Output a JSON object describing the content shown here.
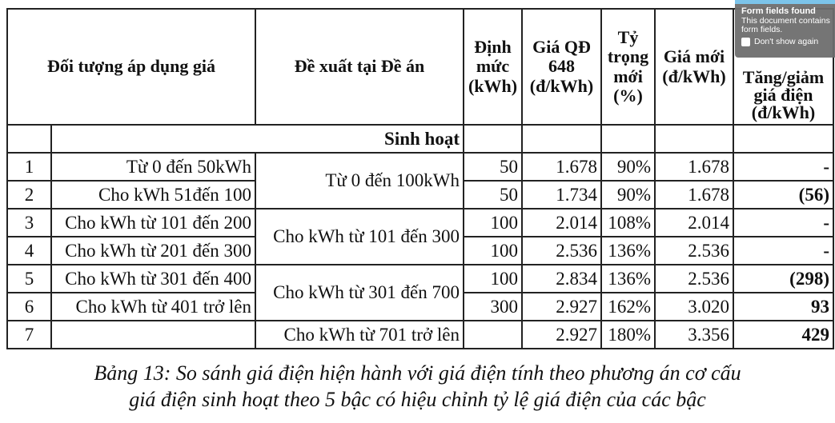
{
  "table": {
    "headers": [
      "Đối tượng áp dụng giá",
      "Đề xuất tại Đề án",
      "Định mức (kWh)",
      "Giá QĐ 648 (đ/kWh)",
      "Tỷ trọng mới (%)",
      "Giá mới (đ/kWh)",
      "Tăng/giảm giá điện (đ/kWh)"
    ],
    "group": "Sinh hoạt",
    "rows": [
      {
        "no": "1",
        "object": "Từ 0 đến 50kWh",
        "norm": "50",
        "old": "1.678",
        "ratio": "90%",
        "new": "1.678",
        "diff": "-"
      },
      {
        "no": "2",
        "object": "Cho kWh 51đến 100",
        "norm": "50",
        "old": "1.734",
        "ratio": "90%",
        "new": "1.678",
        "diff": "(56)"
      },
      {
        "no": "3",
        "object": "Cho kWh từ 101 đến 200",
        "norm": "100",
        "old": "2.014",
        "ratio": "108%",
        "new": "2.014",
        "diff": "-"
      },
      {
        "no": "4",
        "object": "Cho kWh từ 201 đến 300",
        "norm": "100",
        "old": "2.536",
        "ratio": "136%",
        "new": "2.536",
        "diff": "-"
      },
      {
        "no": "5",
        "object": "Cho kWh từ 301 đến 400",
        "norm": "100",
        "old": "2.834",
        "ratio": "136%",
        "new": "2.536",
        "diff": "(298)"
      },
      {
        "no": "6",
        "object": "Cho kWh từ 401 trở lên",
        "norm": "300",
        "old": "2.927",
        "ratio": "162%",
        "new": "3.020",
        "diff": "93"
      },
      {
        "no": "7",
        "object": "",
        "norm": "",
        "old": "2.927",
        "ratio": "180%",
        "new": "3.356",
        "diff": "429"
      }
    ],
    "proposals": [
      "Từ 0 đến 100kWh",
      "Cho kWh từ 101 đến 300",
      "Cho kWh từ 301 đến 700",
      "Cho kWh từ 701 trở lên"
    ]
  },
  "caption": {
    "line1": "Bảng 13: So sánh giá điện hiện hành với giá điện tính theo phương án cơ cấu",
    "line2": "giá điện sinh hoạt theo 5 bậc có hiệu chỉnh tỷ lệ giá điện của các bậc"
  },
  "popup": {
    "title": "Form fields found",
    "message": "This document contains form fields.",
    "checkbox_label": "Don't show again",
    "accent": "#7cc4ea"
  }
}
